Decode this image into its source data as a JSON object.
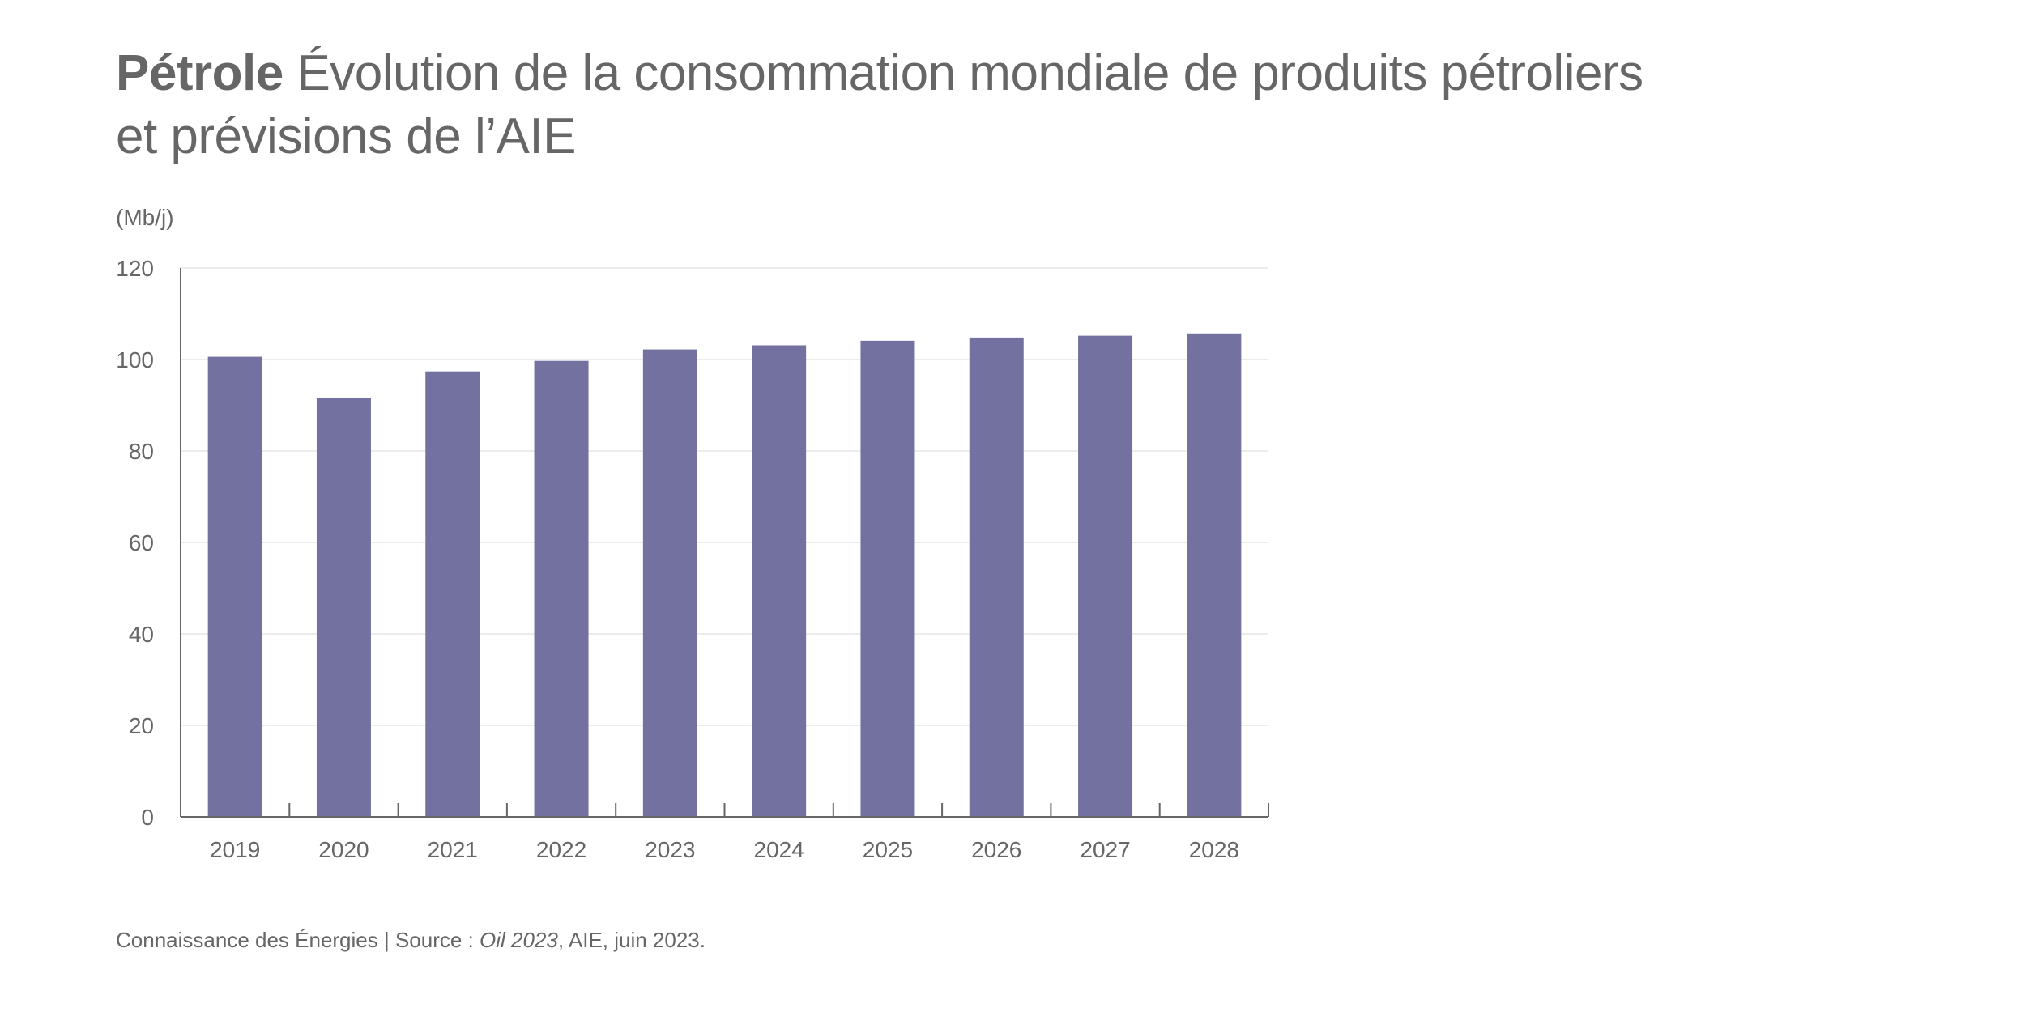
{
  "title": {
    "bold": "Pétrole",
    "line1": "Évolution de la consommation mondiale de produits pétroliers",
    "line2": "et prévisions de l’AIE"
  },
  "unit_label": "(Mb/j)",
  "source": {
    "prefix": "Connaissance des Énergies | Source : ",
    "italic": "Oil 2023",
    "suffix": ", AIE, juin 2023."
  },
  "colors": {
    "bar": "#7371a0",
    "text": "#666666",
    "grid": "#e6e6e6",
    "axis": "#666666"
  },
  "chart_data": {
    "type": "bar",
    "title": "Pétrole Évolution de la consommation mondiale de produits pétroliers et prévisions de l’AIE",
    "xlabel": "",
    "ylabel": "(Mb/j)",
    "categories": [
      "2019",
      "2020",
      "2021",
      "2022",
      "2023",
      "2024",
      "2025",
      "2026",
      "2027",
      "2028"
    ],
    "values": [
      100.6,
      91.6,
      97.4,
      99.7,
      102.2,
      103.1,
      104.1,
      104.8,
      105.2,
      105.7
    ],
    "ylim": [
      0,
      120
    ],
    "yticks": [
      0,
      20,
      40,
      60,
      80,
      100,
      120
    ],
    "grid": true,
    "legend": "none"
  }
}
